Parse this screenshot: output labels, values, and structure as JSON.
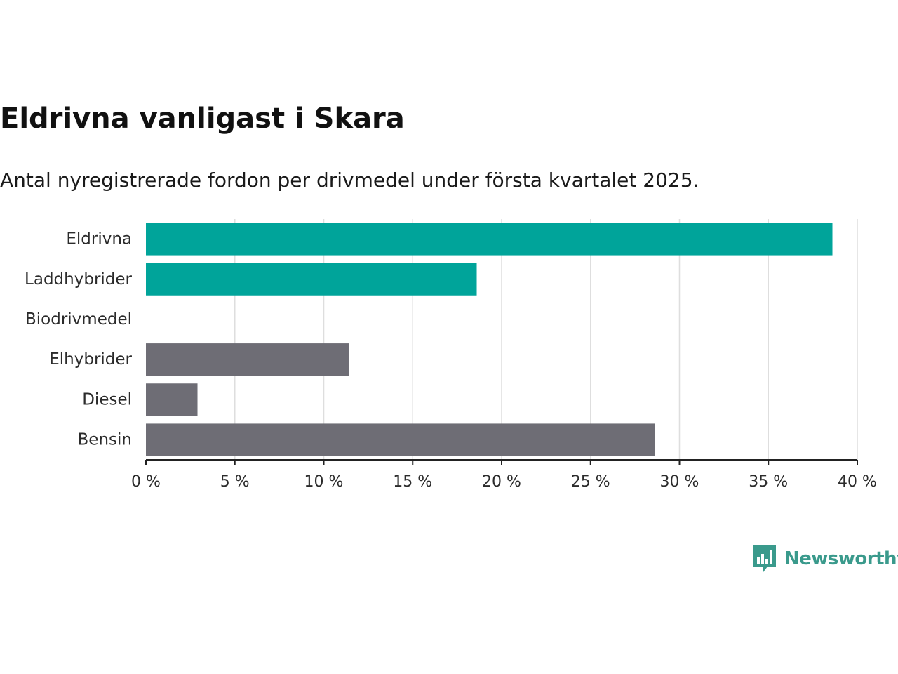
{
  "title": "Eldrivna vanligast i Skara",
  "subtitle": "Antal nyregistrerade fordon per drivmedel under första kvartalet 2025.",
  "brand": {
    "name": "Newsworthy",
    "icon": "bar-chart-speech-bubble-icon",
    "color": "#3a9a8c"
  },
  "chart_data": {
    "type": "bar",
    "orientation": "horizontal",
    "categories": [
      "Eldrivna",
      "Laddhybrider",
      "Biodrivmedel",
      "Elhybrider",
      "Diesel",
      "Bensin"
    ],
    "values": [
      38.6,
      18.6,
      0,
      11.4,
      2.9,
      28.6
    ],
    "colors": [
      "#00a49a",
      "#00a49a",
      "#00a49a",
      "#6e6d75",
      "#6e6d75",
      "#6e6d75"
    ],
    "xlim": [
      0,
      40
    ],
    "ticks": [
      0,
      5,
      10,
      15,
      20,
      25,
      30,
      35,
      40
    ],
    "tick_labels": [
      "0 %",
      "5 %",
      "10 %",
      "15 %",
      "20 %",
      "25 %",
      "30 %",
      "35 %",
      "40 %"
    ],
    "grid": true,
    "xlabel": "",
    "ylabel": ""
  }
}
